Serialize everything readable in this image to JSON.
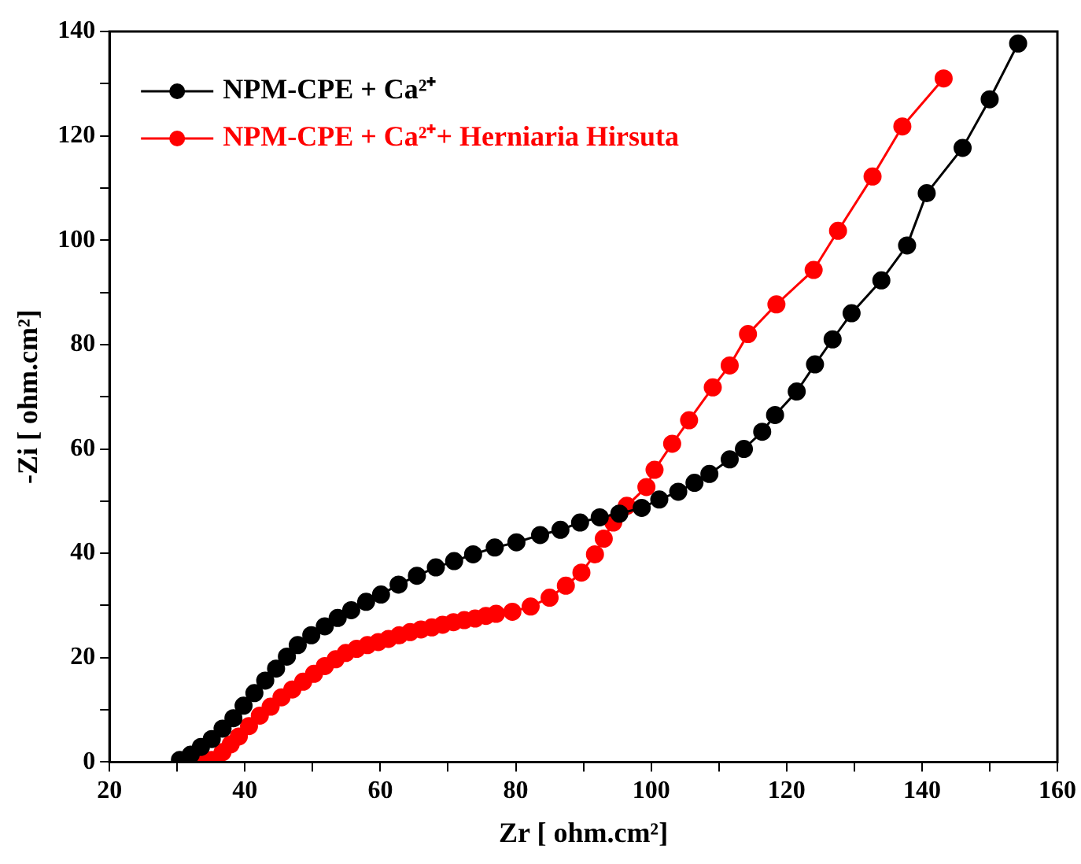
{
  "chart_data": {
    "type": "line",
    "xlabel": "Zr [ ohm.cm²]",
    "ylabel": "-Zi [ ohm.cm²]",
    "xlim": [
      20,
      160
    ],
    "ylim": [
      0,
      140
    ],
    "xticks": [
      20,
      {
        "value": 30,
        "label": null
      },
      40,
      {
        "value": 50,
        "label": null
      },
      60,
      {
        "value": 70,
        "label": null
      },
      80,
      {
        "value": 90,
        "label": null
      },
      100,
      {
        "value": 110,
        "label": null
      },
      120,
      {
        "value": 130,
        "label": null
      },
      140,
      {
        "value": 150,
        "label": null
      },
      160
    ],
    "yticks": [
      0,
      {
        "value": 10,
        "label": null
      },
      20,
      {
        "value": 30,
        "label": null
      },
      40,
      {
        "value": 50,
        "label": null
      },
      60,
      {
        "value": 70,
        "label": null
      },
      80,
      {
        "value": 90,
        "label": null
      },
      100,
      {
        "value": 110,
        "label": null
      },
      120,
      {
        "value": 130,
        "label": null
      },
      140
    ],
    "grid": false,
    "legend": "top left",
    "marker": "circle",
    "line_style": "solid",
    "series": [
      {
        "name": "NPM-CPE + Ca²⁺",
        "color": "#000000",
        "x": [
          30.4,
          32,
          33.5,
          35.1,
          36.7,
          38.3,
          39.8,
          41.4,
          43,
          44.6,
          46.2,
          47.8,
          49.8,
          51.8,
          53.7,
          55.7,
          57.9,
          60.1,
          62.7,
          65.4,
          68.2,
          70.9,
          73.7,
          76.9,
          80.1,
          83.6,
          86.6,
          89.5,
          92.4,
          95.3,
          98.6,
          101.2,
          104,
          106.4,
          108.6,
          111.6,
          113.7,
          116.4,
          118.3,
          121.5,
          124.2,
          126.8,
          129.6,
          134,
          137.8,
          140.7,
          146,
          150,
          154.2
        ],
        "values": [
          0.4,
          1.4,
          2.9,
          4.4,
          6.4,
          8.4,
          10.8,
          13.2,
          15.6,
          17.9,
          20.2,
          22.4,
          24.3,
          26,
          27.6,
          29.1,
          30.7,
          32.1,
          34,
          35.7,
          37.3,
          38.5,
          39.8,
          41.1,
          42.1,
          43.5,
          44.5,
          45.9,
          46.9,
          47.6,
          48.7,
          50.3,
          51.8,
          53.5,
          55.2,
          58,
          60,
          63.3,
          66.5,
          71,
          76.2,
          81,
          86,
          92.3,
          99,
          109,
          117.7,
          127,
          137.7
        ]
      },
      {
        "name": "NPM-CPE + Ca²⁺+ Herniaria Hirsuta",
        "color": "#ff0000",
        "x": [
          33.6,
          35.1,
          36.7,
          37.9,
          39.1,
          40.6,
          42.2,
          43.8,
          45.4,
          47,
          48.6,
          50.2,
          51.8,
          53.4,
          54.9,
          56.5,
          58.1,
          59.7,
          61.2,
          62.8,
          64.4,
          66,
          67.6,
          69.2,
          70.8,
          72.4,
          74,
          75.6,
          77.1,
          79.5,
          82.2,
          85,
          87.4,
          89.7,
          91.7,
          93,
          94.4,
          96.4,
          99.3,
          100.5,
          103.1,
          105.6,
          109.1,
          111.6,
          114.3,
          118.5,
          124,
          127.6,
          132.7,
          137.1,
          143.2
        ],
        "values": [
          0,
          0.4,
          1.9,
          3.4,
          4.9,
          6.9,
          8.9,
          10.6,
          12.4,
          13.9,
          15.4,
          16.9,
          18.4,
          19.7,
          20.9,
          21.7,
          22.4,
          23,
          23.6,
          24.3,
          24.9,
          25.4,
          25.8,
          26.3,
          26.8,
          27.2,
          27.5,
          28,
          28.4,
          28.8,
          29.8,
          31.5,
          33.8,
          36.3,
          39.8,
          42.8,
          45.9,
          49.1,
          52.7,
          56,
          61,
          65.5,
          71.8,
          76,
          82,
          87.7,
          94.3,
          101.8,
          112.2,
          121.8,
          131
        ]
      }
    ]
  }
}
